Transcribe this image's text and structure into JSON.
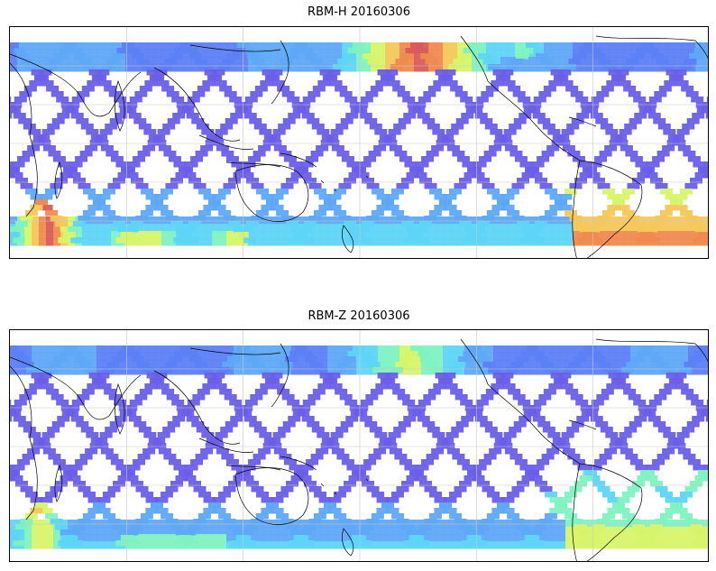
{
  "panels": [
    {
      "id": "rbm-h",
      "title": "RBM-H 20160306"
    },
    {
      "id": "rbm-z",
      "title": "RBM-Z 20160306"
    }
  ],
  "colormap": [
    "#6a5ee8",
    "#5c7ff5",
    "#5ea8f7",
    "#5ed5f5",
    "#7ef2c0",
    "#d7f46a",
    "#f6c75a",
    "#f08a4e",
    "#d95b5b"
  ],
  "grid": {
    "lines": "on",
    "color": "#c8c8c8"
  },
  "coastline_color": "#000000"
}
